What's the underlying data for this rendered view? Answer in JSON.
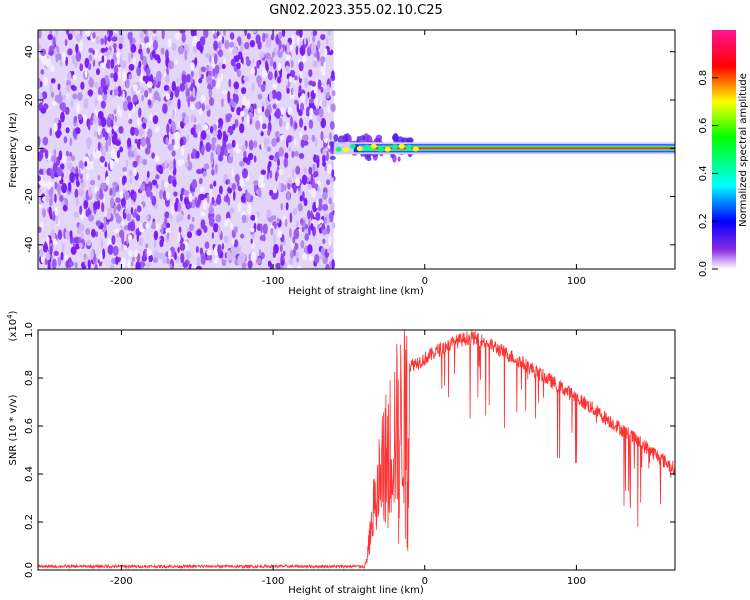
{
  "title": "GN02.2023.355.02.10.C25",
  "colors": {
    "scatter": "#7a1ff5",
    "line": "#ff3131",
    "axis": "#000000"
  },
  "chart_data": [
    {
      "type": "heatmap",
      "name": "spectrogram",
      "xlabel": "Height of straight line (km)",
      "ylabel": "Frequency (Hz)",
      "xlim": [
        -255,
        165
      ],
      "ylim": [
        -50,
        49
      ],
      "xticks": [
        -200,
        -100,
        0,
        100
      ],
      "yticks": [
        -40,
        -20,
        0,
        20,
        40
      ],
      "noise_region_x": [
        -255,
        -60
      ],
      "signal_band": {
        "x": [
          -60,
          165
        ],
        "freq_hz": 0,
        "halfwidth_hz": 2
      },
      "colorbar": {
        "label": "Normalized spectral amplitude",
        "range": [
          0,
          1
        ],
        "ticks": [
          0.0,
          0.2,
          0.4,
          0.6,
          0.8
        ],
        "colors": [
          "#ffffff",
          "#7a1ff5",
          "#0000ff",
          "#00ffff",
          "#00ff00",
          "#ffff00",
          "#ff0000",
          "#ff00a0"
        ]
      }
    },
    {
      "type": "line",
      "name": "snr",
      "xlabel": "Height of straight line (km)",
      "ylabel": "SNR (10 * v/v)",
      "yscale_label": "(x10",
      "yscale_exp": "4",
      "yscale_close": ")",
      "xlim": [
        -255,
        165
      ],
      "ylim": [
        0,
        1.0
      ],
      "xticks": [
        -200,
        -100,
        0,
        100
      ],
      "yticks": [
        0.0,
        0.2,
        0.4,
        0.6,
        0.8,
        1.0
      ],
      "ytick_labels": [
        "0.0",
        "0.2",
        "0.4",
        "0.6",
        "0.8",
        "1.0"
      ],
      "envelope_x": [
        -255,
        -40,
        -38,
        -35,
        -30,
        -25,
        -20,
        -15,
        -10,
        0,
        10,
        20,
        30,
        40,
        60,
        80,
        100,
        120,
        140,
        165
      ],
      "envelope_y": [
        0.015,
        0.015,
        0.05,
        0.25,
        0.45,
        0.6,
        0.72,
        0.78,
        0.85,
        0.88,
        0.92,
        0.95,
        0.97,
        0.95,
        0.88,
        0.8,
        0.72,
        0.63,
        0.54,
        0.42
      ]
    }
  ]
}
